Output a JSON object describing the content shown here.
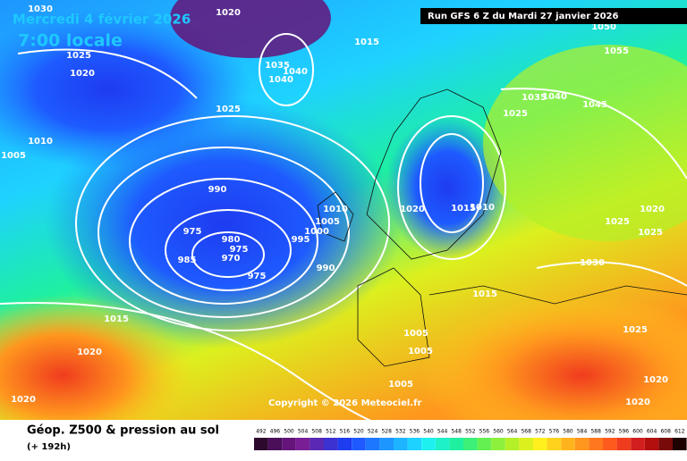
{
  "header": {
    "date": "Mercredi 4 février 2026",
    "time": "7:00 locale",
    "run": "Run GFS 6 Z du Mardi 27 janvier 2026"
  },
  "map": {
    "isobar_labels": [
      "1030",
      "1020",
      "1025",
      "1020",
      "1010",
      "1005",
      "1035",
      "1040",
      "1040",
      "1025",
      "990",
      "975",
      "980",
      "970",
      "975",
      "985",
      "975",
      "995",
      "1000",
      "1005",
      "1010",
      "990",
      "1015",
      "1020",
      "1015",
      "1010",
      "1035",
      "1040",
      "1025",
      "1045",
      "1055",
      "1050",
      "1025",
      "1020",
      "1025",
      "1030",
      "1015",
      "1025",
      "1005",
      "1005",
      "1005",
      "1015",
      "1020",
      "1020",
      "1020",
      "1020"
    ],
    "copyright": "Copyright © 2026 Meteociel.fr"
  },
  "footer": {
    "title": "Géop. Z500 & pression au sol",
    "lead": "(+ 192h)",
    "scale": [
      492,
      496,
      500,
      504,
      508,
      512,
      516,
      520,
      524,
      528,
      532,
      536,
      540,
      544,
      548,
      552,
      556,
      560,
      564,
      568,
      572,
      576,
      580,
      584,
      588,
      592,
      596,
      600,
      604,
      608,
      612
    ],
    "scale_colors": [
      "#2d0a2d",
      "#4b0f5a",
      "#64147a",
      "#7a1e96",
      "#5a28b4",
      "#3c32d2",
      "#1e3cf0",
      "#1e5aff",
      "#1e78ff",
      "#1e96ff",
      "#1eb4ff",
      "#1ed2ff",
      "#1ef0f0",
      "#1ef0c8",
      "#1ef0a0",
      "#3cf078",
      "#64f050",
      "#8cf03c",
      "#b4f028",
      "#dcf01e",
      "#fff01e",
      "#ffd21e",
      "#ffb41e",
      "#ff961e",
      "#ff781e",
      "#ff5a1e",
      "#f03c1e",
      "#d21e1e",
      "#b40f0f",
      "#780a0a",
      "#1e0000"
    ]
  }
}
